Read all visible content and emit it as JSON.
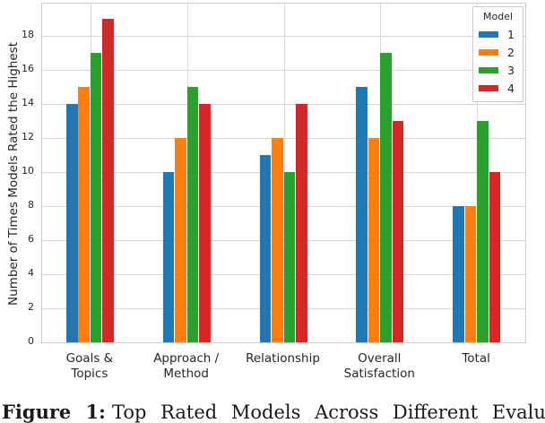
{
  "chart_data": {
    "type": "bar",
    "title": "",
    "categories": [
      "Goals &\nTopics",
      "Approach /\nMethod",
      "Relationship",
      "Overall\nSatisfaction",
      "Total"
    ],
    "series": [
      {
        "name": "1",
        "color": "#1f77b4",
        "values": [
          14,
          10,
          11,
          15,
          8
        ]
      },
      {
        "name": "2",
        "color": "#ff7f0e",
        "values": [
          15,
          12,
          12,
          12,
          8
        ]
      },
      {
        "name": "3",
        "color": "#2ca02c",
        "values": [
          17,
          15,
          10,
          17,
          13
        ]
      },
      {
        "name": "4",
        "color": "#d62728",
        "values": [
          19,
          14,
          14,
          13,
          10
        ]
      }
    ],
    "xlabel": "",
    "ylabel": "Number of Times Models Rated the Highest",
    "yticks": [
      0,
      2,
      4,
      6,
      8,
      10,
      12,
      14,
      16,
      18
    ],
    "ylim": [
      0,
      19.9
    ],
    "grid": true,
    "legend": {
      "title": "Model",
      "position": "upper right"
    }
  },
  "caption": {
    "prefix": "Figure 1:",
    "text": "Top Rated Models Across Different Evaluati"
  },
  "colors": {
    "grid": "#d9d9d9",
    "spine": "#cccccc",
    "text": "#262626"
  }
}
